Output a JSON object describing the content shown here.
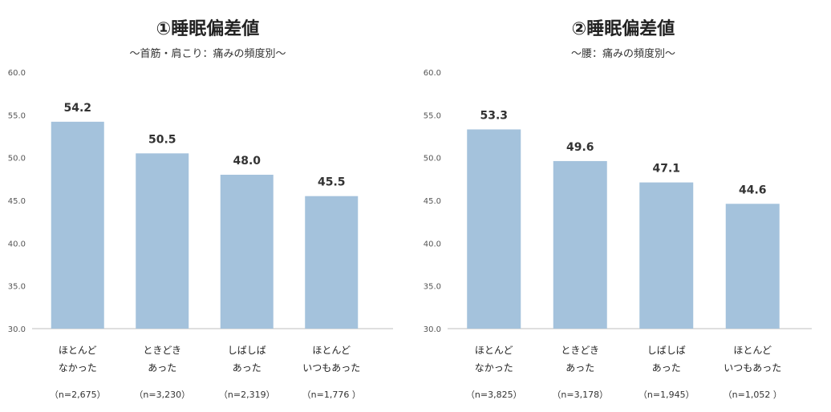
{
  "chart_data": [
    {
      "type": "bar",
      "title": "①睡眠偏差値",
      "subtitle": "～首筋・肩こり：痛みの頻度別～",
      "ylim": [
        30.0,
        60.0
      ],
      "yticks": [
        "60.0",
        "55.0",
        "50.0",
        "45.0",
        "40.0",
        "35.0",
        "30.0"
      ],
      "categories": [
        {
          "line1": "ほとんど",
          "line2": "なかった",
          "n": "（n=2,675）"
        },
        {
          "line1": "ときどき",
          "line2": "あった",
          "n": "（n=3,230）"
        },
        {
          "line1": "しばしば",
          "line2": "あった",
          "n": "（n=2,319）"
        },
        {
          "line1": "ほとんど",
          "line2": "いつもあった",
          "n": "（n=1,776 ）"
        }
      ],
      "values": [
        54.2,
        50.5,
        48.0,
        45.5
      ],
      "value_labels": [
        "54.2",
        "50.5",
        "48.0",
        "45.5"
      ],
      "bar_color": "#a4c2dc",
      "grid": false
    },
    {
      "type": "bar",
      "title": "②睡眠偏差値",
      "subtitle": "～腰：痛みの頻度別～",
      "ylim": [
        30.0,
        60.0
      ],
      "yticks": [
        "60.0",
        "55.0",
        "50.0",
        "45.0",
        "40.0",
        "35.0",
        "30.0"
      ],
      "categories": [
        {
          "line1": "ほとんど",
          "line2": "なかった",
          "n": "（n=3,825）"
        },
        {
          "line1": "ときどき",
          "line2": "あった",
          "n": "（n=3,178）"
        },
        {
          "line1": "しばしば",
          "line2": "あった",
          "n": "（n=1,945）"
        },
        {
          "line1": "ほとんど",
          "line2": "いつもあった",
          "n": "（n=1,052 ）"
        }
      ],
      "values": [
        53.3,
        49.6,
        47.1,
        44.6
      ],
      "value_labels": [
        "53.3",
        "49.6",
        "47.1",
        "44.6"
      ],
      "bar_color": "#a4c2dc",
      "grid": false
    }
  ]
}
